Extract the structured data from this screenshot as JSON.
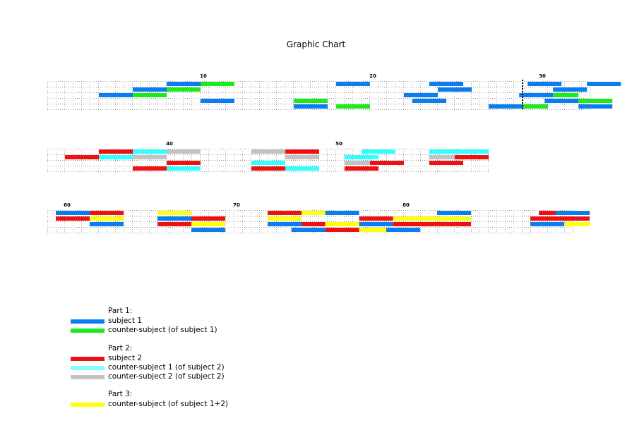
{
  "title": "Graphic Chart",
  "colors": {
    "subject1": "#0a7ef0",
    "cs_subject1": "#1cea1c",
    "subject2": "#ee1111",
    "cs1_subject2": "#33ffff",
    "cs2_subject2": "#c2c2c2",
    "cs_subject12": "#ffff11"
  },
  "measure_labels": [
    "10",
    "20",
    "30",
    "40",
    "50",
    "60",
    "70",
    "80"
  ],
  "legend": {
    "part1": {
      "heading": "Part 1:",
      "items": [
        {
          "label": "subject 1",
          "color": "subject1"
        },
        {
          "label": "counter-subject (of subject 1)",
          "color": "cs_subject1"
        }
      ]
    },
    "part2": {
      "heading": "Part 2:",
      "items": [
        {
          "label": "subject 2",
          "color": "subject2"
        },
        {
          "label": "counter-subject 1 (of subject 2)",
          "color": "cs1_subject2"
        },
        {
          "label": "counter-subject 2 (of subject 2)",
          "color": "cs2_subject2"
        }
      ]
    },
    "part3": {
      "heading": "Part 3:",
      "items": [
        {
          "label": "counter-subject (of subject 1+2)",
          "color": "cs_subject12"
        }
      ]
    }
  },
  "chart_data": {
    "type": "timeline",
    "title": "Graphic Chart",
    "systems": [
      {
        "first_measure": 8,
        "last_measure": 33,
        "voices": 5,
        "marker_measure": 29,
        "bars": [
          {
            "voice": 1,
            "start": 8,
            "end": 10,
            "color": "subject1"
          },
          {
            "voice": 1,
            "start": 10,
            "end": 12,
            "color": "cs_subject1"
          },
          {
            "voice": 1,
            "start": 18,
            "end": 20,
            "color": "subject1"
          },
          {
            "voice": 1,
            "start": 23.5,
            "end": 25.5,
            "color": "subject1"
          },
          {
            "voice": 1,
            "start": 29.3,
            "end": 31.3,
            "color": "subject1"
          },
          {
            "voice": 1,
            "start": 32.8,
            "end": 34.8,
            "color": "subject1"
          },
          {
            "voice": 2,
            "start": 6,
            "end": 8,
            "color": "subject1"
          },
          {
            "voice": 2,
            "start": 8,
            "end": 10,
            "color": "cs_subject1"
          },
          {
            "voice": 2,
            "start": 24,
            "end": 26,
            "color": "subject1"
          },
          {
            "voice": 2,
            "start": 30.8,
            "end": 32.8,
            "color": "subject1"
          },
          {
            "voice": 3,
            "start": 4,
            "end": 6,
            "color": "subject1"
          },
          {
            "voice": 3,
            "start": 6,
            "end": 8,
            "color": "cs_subject1"
          },
          {
            "voice": 3,
            "start": 22,
            "end": 24,
            "color": "subject1"
          },
          {
            "voice": 3,
            "start": 28.8,
            "end": 30.8,
            "color": "subject1"
          },
          {
            "voice": 3,
            "start": 30.8,
            "end": 32.3,
            "color": "cs_subject1"
          },
          {
            "voice": 4,
            "start": 10,
            "end": 12,
            "color": "subject1"
          },
          {
            "voice": 4,
            "start": 15.5,
            "end": 17.5,
            "color": "cs_subject1"
          },
          {
            "voice": 4,
            "start": 22.5,
            "end": 24.5,
            "color": "subject1"
          },
          {
            "voice": 4,
            "start": 30.3,
            "end": 32.3,
            "color": "subject1"
          },
          {
            "voice": 4,
            "start": 32.3,
            "end": 34.3,
            "color": "cs_subject1"
          },
          {
            "voice": 5,
            "start": 15.5,
            "end": 17.5,
            "color": "subject1"
          },
          {
            "voice": 5,
            "start": 18,
            "end": 20,
            "color": "cs_subject1"
          },
          {
            "voice": 5,
            "start": 27,
            "end": 29,
            "color": "subject1"
          },
          {
            "voice": 5,
            "start": 29,
            "end": 30.5,
            "color": "cs_subject1"
          },
          {
            "voice": 5,
            "start": 32.3,
            "end": 34.3,
            "color": "subject1"
          }
        ]
      },
      {
        "first_measure": 34,
        "last_measure": 60,
        "voices": 4,
        "bars": [
          {
            "voice": 1,
            "start": 36,
            "end": 38,
            "color": "subject2"
          },
          {
            "voice": 1,
            "start": 38,
            "end": 40,
            "color": "cs1_subject2"
          },
          {
            "voice": 1,
            "start": 40,
            "end": 42,
            "color": "cs2_subject2"
          },
          {
            "voice": 1,
            "start": 45,
            "end": 47,
            "color": "cs2_subject2"
          },
          {
            "voice": 1,
            "start": 47,
            "end": 49,
            "color": "subject2"
          },
          {
            "voice": 1,
            "start": 51.5,
            "end": 53.5,
            "color": "cs1_subject2"
          },
          {
            "voice": 1,
            "start": 55.5,
            "end": 59,
            "color": "cs1_subject2"
          },
          {
            "voice": 2,
            "start": 34,
            "end": 36,
            "color": "subject2"
          },
          {
            "voice": 2,
            "start": 36,
            "end": 38,
            "color": "cs1_subject2"
          },
          {
            "voice": 2,
            "start": 38,
            "end": 40,
            "color": "cs2_subject2"
          },
          {
            "voice": 2,
            "start": 47,
            "end": 49,
            "color": "cs2_subject2"
          },
          {
            "voice": 2,
            "start": 50.5,
            "end": 52.5,
            "color": "cs1_subject2"
          },
          {
            "voice": 2,
            "start": 55.5,
            "end": 57,
            "color": "cs2_subject2"
          },
          {
            "voice": 2,
            "start": 57,
            "end": 59,
            "color": "subject2"
          },
          {
            "voice": 3,
            "start": 40,
            "end": 42,
            "color": "subject2"
          },
          {
            "voice": 3,
            "start": 45,
            "end": 47,
            "color": "cs1_subject2"
          },
          {
            "voice": 3,
            "start": 50.5,
            "end": 52,
            "color": "cs2_subject2"
          },
          {
            "voice": 3,
            "start": 52,
            "end": 54,
            "color": "subject2"
          },
          {
            "voice": 3,
            "start": 55.5,
            "end": 57.5,
            "color": "subject2"
          },
          {
            "voice": 4,
            "start": 38,
            "end": 40,
            "color": "subject2"
          },
          {
            "voice": 4,
            "start": 40,
            "end": 42,
            "color": "cs1_subject2"
          },
          {
            "voice": 4,
            "start": 45,
            "end": 47,
            "color": "subject2"
          },
          {
            "voice": 4,
            "start": 47,
            "end": 49,
            "color": "cs1_subject2"
          },
          {
            "voice": 4,
            "start": 50.5,
            "end": 52.5,
            "color": "subject2"
          }
        ]
      },
      {
        "first_measure": 60,
        "last_measure": 89,
        "voices": 4,
        "bars": [
          {
            "voice": 1,
            "start": 59.5,
            "end": 61.5,
            "color": "subject1"
          },
          {
            "voice": 1,
            "start": 61.5,
            "end": 63.5,
            "color": "subject2"
          },
          {
            "voice": 1,
            "start": 65.5,
            "end": 67.5,
            "color": "cs_subject12"
          },
          {
            "voice": 1,
            "start": 72,
            "end": 74,
            "color": "subject2"
          },
          {
            "voice": 1,
            "start": 74,
            "end": 75.4,
            "color": "cs_subject12"
          },
          {
            "voice": 1,
            "start": 75.4,
            "end": 77.4,
            "color": "subject1"
          },
          {
            "voice": 1,
            "start": 82,
            "end": 84,
            "color": "subject1"
          },
          {
            "voice": 1,
            "start": 88,
            "end": 89,
            "color": "subject2"
          },
          {
            "voice": 1,
            "start": 89,
            "end": 91,
            "color": "subject1"
          },
          {
            "voice": 2,
            "start": 59.5,
            "end": 61.5,
            "color": "subject2"
          },
          {
            "voice": 2,
            "start": 61.5,
            "end": 63.5,
            "color": "cs_subject12"
          },
          {
            "voice": 2,
            "start": 65.5,
            "end": 67.5,
            "color": "subject1"
          },
          {
            "voice": 2,
            "start": 67.5,
            "end": 69.5,
            "color": "subject2"
          },
          {
            "voice": 2,
            "start": 72,
            "end": 74,
            "color": "cs_subject12"
          },
          {
            "voice": 2,
            "start": 77.4,
            "end": 79.4,
            "color": "subject2"
          },
          {
            "voice": 2,
            "start": 79.4,
            "end": 84,
            "color": "cs_subject12"
          },
          {
            "voice": 2,
            "start": 87.5,
            "end": 91,
            "color": "subject2"
          },
          {
            "voice": 3,
            "start": 61.5,
            "end": 63.5,
            "color": "subject1"
          },
          {
            "voice": 3,
            "start": 65.5,
            "end": 67.5,
            "color": "subject2"
          },
          {
            "voice": 3,
            "start": 67.5,
            "end": 69.5,
            "color": "cs_subject12"
          },
          {
            "voice": 3,
            "start": 72,
            "end": 74,
            "color": "subject1"
          },
          {
            "voice": 3,
            "start": 74,
            "end": 75.4,
            "color": "subject2"
          },
          {
            "voice": 3,
            "start": 75.4,
            "end": 77.4,
            "color": "cs_subject12"
          },
          {
            "voice": 3,
            "start": 77.4,
            "end": 79.4,
            "color": "subject1"
          },
          {
            "voice": 3,
            "start": 79.4,
            "end": 84,
            "color": "subject2"
          },
          {
            "voice": 3,
            "start": 87.5,
            "end": 89.5,
            "color": "subject1"
          },
          {
            "voice": 3,
            "start": 89.5,
            "end": 91,
            "color": "cs_subject12"
          },
          {
            "voice": 4,
            "start": 67.5,
            "end": 69.5,
            "color": "subject1"
          },
          {
            "voice": 4,
            "start": 73.4,
            "end": 75.4,
            "color": "subject1"
          },
          {
            "voice": 4,
            "start": 75.4,
            "end": 77.4,
            "color": "subject2"
          },
          {
            "voice": 4,
            "start": 77.4,
            "end": 79,
            "color": "cs_subject12"
          },
          {
            "voice": 4,
            "start": 79,
            "end": 81,
            "color": "subject1"
          }
        ]
      }
    ]
  }
}
